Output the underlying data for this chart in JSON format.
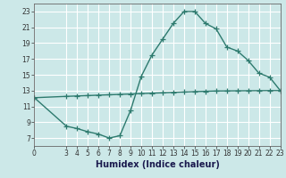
{
  "xlabel": "Humidex (Indice chaleur)",
  "background_color": "#cce8e8",
  "grid_color": "#ffffff",
  "line_color": "#2d7a6e",
  "xlim": [
    0,
    23
  ],
  "ylim": [
    6,
    24
  ],
  "xticks": [
    0,
    3,
    4,
    5,
    6,
    7,
    8,
    9,
    10,
    11,
    12,
    13,
    14,
    15,
    16,
    17,
    18,
    19,
    20,
    21,
    22,
    23
  ],
  "yticks": [
    7,
    9,
    11,
    13,
    15,
    17,
    19,
    21,
    23
  ],
  "curve1_x": [
    0,
    3,
    4,
    5,
    6,
    7,
    8,
    9,
    10,
    11,
    12,
    13,
    14,
    15,
    16,
    17,
    18,
    19,
    20,
    21,
    22,
    23
  ],
  "curve1_y": [
    12.1,
    8.5,
    8.2,
    7.8,
    7.5,
    7.0,
    7.3,
    10.5,
    14.8,
    17.5,
    19.5,
    21.5,
    23.0,
    23.0,
    21.5,
    20.8,
    18.5,
    18.0,
    16.8,
    15.2,
    14.7,
    13.0
  ],
  "curve2_x": [
    0,
    3,
    4,
    5,
    6,
    7,
    8,
    9,
    10,
    11,
    12,
    13,
    14,
    15,
    16,
    17,
    18,
    19,
    20,
    21,
    22,
    23
  ],
  "curve2_y": [
    12.1,
    12.27,
    12.32,
    12.37,
    12.42,
    12.47,
    12.52,
    12.57,
    12.62,
    12.67,
    12.72,
    12.77,
    12.82,
    12.87,
    12.91,
    12.95,
    12.96,
    12.97,
    12.98,
    12.99,
    13.0,
    13.0
  ],
  "marker": "+",
  "markersize": 4,
  "linewidth": 1.0,
  "xlabel_fontsize": 7,
  "tick_fontsize": 5.5
}
